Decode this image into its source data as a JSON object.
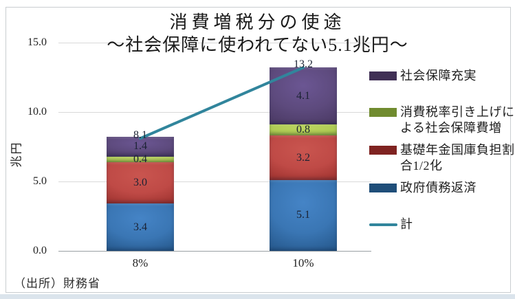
{
  "title": "消費増税分の使途",
  "subtitle": "～社会保障に使われてない5.1兆円～",
  "source_note": "（出所）財務省",
  "chart_data": {
    "type": "bar",
    "stacked": true,
    "title": "消費増税分の使途",
    "subtitle": "～社会保障に使われてない5.1兆円～",
    "ylabel": "兆円",
    "ylim": [
      0,
      15
    ],
    "ytick_labels": [
      "0.0",
      "5.0",
      "10.0",
      "15.0"
    ],
    "grid": true,
    "legend_position": "right",
    "categories": [
      "8%",
      "10%"
    ],
    "series": [
      {
        "name": "政府債務返済",
        "values": [
          3.4,
          5.1
        ],
        "color_light": "#4584c6",
        "color_mid": "#3a76b4",
        "color_dark": "#1c4a79",
        "legend_color": "#1f4e79"
      },
      {
        "name": "基礎年金国庫負担割合1/2化",
        "values": [
          3.0,
          3.2
        ],
        "color_light": "#c9554f",
        "color_mid": "#bf4a46",
        "color_dark": "#8e2724",
        "legend_color": "#7f2321"
      },
      {
        "name": "消費税率引き上げによる社会保障費増",
        "values": [
          0.4,
          0.8
        ],
        "color_light": "#bcd45f",
        "color_mid": "#aecb53",
        "color_dark": "#7f9c36",
        "legend_color": "#708b2f"
      },
      {
        "name": "社会保障充実",
        "values": [
          1.4,
          4.1
        ],
        "color_light": "#6b5693",
        "color_mid": "#5d4a7d",
        "color_dark": "#413157",
        "legend_color": "#403055"
      }
    ],
    "totals_line": {
      "name": "計",
      "values": [
        8.1,
        13.2
      ],
      "color": "#31859c"
    }
  },
  "legend": {
    "items": [
      {
        "label_lines": [
          "社会保障充実"
        ],
        "swatch": "box",
        "color": "#403055"
      },
      {
        "label_lines": [
          "消費税率引き上げに",
          "よる社会保障費増"
        ],
        "swatch": "box",
        "color": "#708b2f"
      },
      {
        "label_lines": [
          "基礎年金国庫負担割",
          "合1/2化"
        ],
        "swatch": "box",
        "color": "#7f2321"
      },
      {
        "label_lines": [
          "政府債務返済"
        ],
        "swatch": "box",
        "color": "#1f4e79"
      },
      {
        "label_lines": [
          "計"
        ],
        "swatch": "line",
        "color": "#31859c"
      }
    ]
  }
}
